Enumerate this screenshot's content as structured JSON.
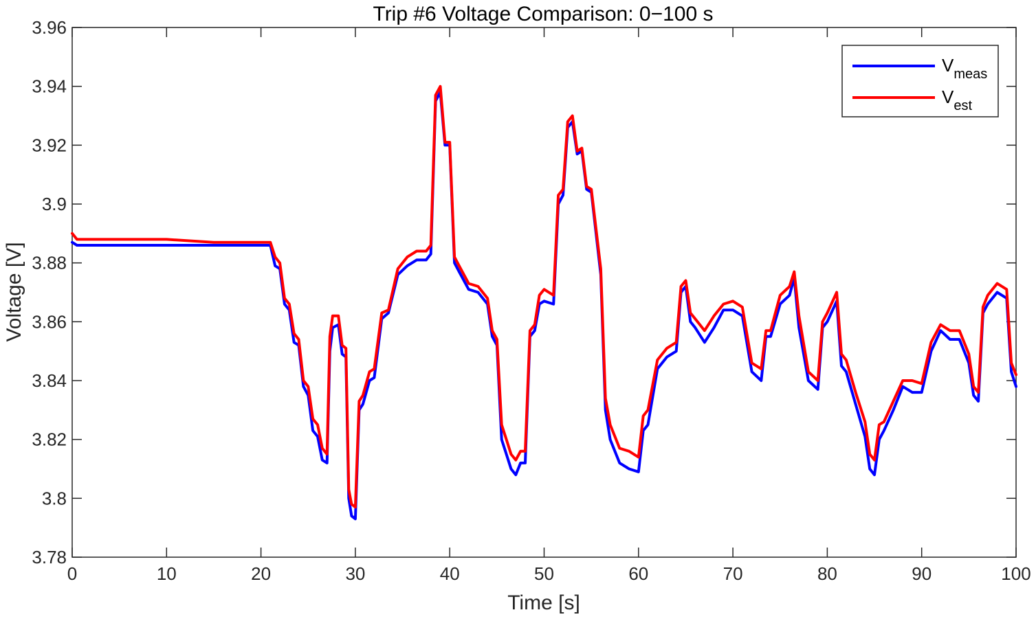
{
  "chart_data": {
    "type": "line",
    "title": "Trip #6 Voltage Comparison: 0−100 s",
    "xlabel": "Time [s]",
    "ylabel": "Voltage [V]",
    "xlim": [
      0,
      100
    ],
    "ylim": [
      3.78,
      3.96
    ],
    "xticks": [
      0,
      10,
      20,
      30,
      40,
      50,
      60,
      70,
      80,
      90,
      100
    ],
    "xtick_labels": [
      "0",
      "10",
      "20",
      "30",
      "40",
      "50",
      "60",
      "70",
      "80",
      "90",
      "100"
    ],
    "yticks": [
      3.78,
      3.8,
      3.82,
      3.84,
      3.86,
      3.88,
      3.9,
      3.92,
      3.94,
      3.96
    ],
    "ytick_labels": [
      "3.78",
      "3.8",
      "3.82",
      "3.84",
      "3.86",
      "3.88",
      "3.9",
      "3.92",
      "3.94",
      "3.96"
    ],
    "grid": false,
    "legend_position": "top-right",
    "series": [
      {
        "name": "V",
        "name_subscript": "meas",
        "color": "#0000ff",
        "x": [
          0,
          0.5,
          5,
          10,
          15,
          20,
          21,
          21.5,
          22,
          22.5,
          23,
          23.5,
          24,
          24.5,
          25,
          25.5,
          26,
          26.5,
          27,
          27.3,
          27.6,
          28.2,
          28.6,
          29,
          29.3,
          29.6,
          30,
          30.4,
          30.8,
          31.5,
          32,
          32.8,
          33.5,
          34.5,
          35.5,
          36.5,
          37.5,
          38,
          38.5,
          39,
          39.5,
          40,
          40.5,
          41,
          42,
          43,
          44,
          44.5,
          45,
          45.5,
          46,
          46.5,
          47,
          47.5,
          48,
          48.5,
          49,
          49.5,
          50,
          51,
          51.5,
          52,
          52.5,
          53,
          53.5,
          54,
          54.5,
          55,
          56,
          56.5,
          57,
          58,
          59,
          60,
          60.5,
          61,
          62,
          63,
          64,
          64.5,
          65,
          65.5,
          66,
          67,
          68,
          69,
          70,
          71,
          72,
          73,
          73.5,
          74,
          75,
          76,
          76.5,
          77,
          78,
          79,
          79.5,
          80,
          81,
          81.5,
          82,
          83,
          84,
          84.5,
          85,
          85.5,
          86,
          87,
          88,
          89,
          90,
          91,
          92,
          93,
          94,
          95,
          95.5,
          96,
          96.5,
          97,
          98,
          99,
          99.5,
          100
        ],
        "y": [
          3.887,
          3.886,
          3.886,
          3.886,
          3.886,
          3.886,
          3.886,
          3.879,
          3.878,
          3.866,
          3.864,
          3.853,
          3.852,
          3.838,
          3.835,
          3.823,
          3.821,
          3.813,
          3.812,
          3.85,
          3.858,
          3.859,
          3.849,
          3.848,
          3.8,
          3.794,
          3.793,
          3.83,
          3.832,
          3.84,
          3.841,
          3.861,
          3.863,
          3.876,
          3.879,
          3.881,
          3.881,
          3.883,
          3.935,
          3.938,
          3.92,
          3.92,
          3.88,
          3.877,
          3.871,
          3.87,
          3.866,
          3.855,
          3.852,
          3.82,
          3.815,
          3.81,
          3.808,
          3.812,
          3.812,
          3.855,
          3.857,
          3.866,
          3.867,
          3.866,
          3.9,
          3.903,
          3.926,
          3.928,
          3.917,
          3.918,
          3.905,
          3.904,
          3.876,
          3.83,
          3.82,
          3.812,
          3.81,
          3.809,
          3.823,
          3.825,
          3.844,
          3.848,
          3.85,
          3.87,
          3.872,
          3.86,
          3.858,
          3.853,
          3.858,
          3.864,
          3.864,
          3.862,
          3.843,
          3.84,
          3.855,
          3.855,
          3.866,
          3.869,
          3.875,
          3.858,
          3.84,
          3.837,
          3.858,
          3.86,
          3.867,
          3.845,
          3.843,
          3.832,
          3.821,
          3.81,
          3.808,
          3.82,
          3.823,
          3.83,
          3.838,
          3.836,
          3.836,
          3.85,
          3.857,
          3.854,
          3.854,
          3.846,
          3.835,
          3.833,
          3.863,
          3.866,
          3.87,
          3.868,
          3.843,
          3.838
        ]
      },
      {
        "name": "V",
        "name_subscript": "est",
        "color": "#ff0000",
        "x": [
          0,
          0.5,
          5,
          10,
          15,
          20,
          21,
          21.5,
          22,
          22.5,
          23,
          23.5,
          24,
          24.5,
          25,
          25.5,
          26,
          26.5,
          27,
          27.3,
          27.6,
          28.2,
          28.6,
          29,
          29.3,
          29.6,
          30,
          30.4,
          30.8,
          31.5,
          32,
          32.8,
          33.5,
          34.5,
          35.5,
          36.5,
          37.5,
          38,
          38.5,
          39,
          39.5,
          40,
          40.5,
          41,
          42,
          43,
          44,
          44.5,
          45,
          45.5,
          46,
          46.5,
          47,
          47.5,
          48,
          48.5,
          49,
          49.5,
          50,
          51,
          51.5,
          52,
          52.5,
          53,
          53.5,
          54,
          54.5,
          55,
          56,
          56.5,
          57,
          58,
          59,
          60,
          60.5,
          61,
          62,
          63,
          64,
          64.5,
          65,
          65.5,
          66,
          67,
          68,
          69,
          70,
          71,
          72,
          73,
          73.5,
          74,
          75,
          76,
          76.5,
          77,
          78,
          79,
          79.5,
          80,
          81,
          81.5,
          82,
          83,
          84,
          84.5,
          85,
          85.5,
          86,
          87,
          88,
          89,
          90,
          91,
          92,
          93,
          94,
          95,
          95.5,
          96,
          96.5,
          97,
          98,
          99,
          99.5,
          100
        ],
        "y": [
          3.89,
          3.888,
          3.888,
          3.888,
          3.887,
          3.887,
          3.887,
          3.882,
          3.88,
          3.868,
          3.866,
          3.856,
          3.854,
          3.84,
          3.838,
          3.827,
          3.825,
          3.817,
          3.815,
          3.855,
          3.862,
          3.862,
          3.852,
          3.851,
          3.803,
          3.798,
          3.797,
          3.833,
          3.835,
          3.843,
          3.844,
          3.863,
          3.864,
          3.878,
          3.882,
          3.884,
          3.884,
          3.886,
          3.937,
          3.94,
          3.921,
          3.921,
          3.882,
          3.879,
          3.873,
          3.872,
          3.868,
          3.857,
          3.854,
          3.825,
          3.82,
          3.815,
          3.813,
          3.816,
          3.816,
          3.857,
          3.859,
          3.869,
          3.871,
          3.869,
          3.903,
          3.905,
          3.928,
          3.93,
          3.918,
          3.919,
          3.906,
          3.905,
          3.878,
          3.834,
          3.825,
          3.817,
          3.816,
          3.814,
          3.828,
          3.83,
          3.847,
          3.851,
          3.853,
          3.872,
          3.874,
          3.863,
          3.861,
          3.857,
          3.862,
          3.866,
          3.867,
          3.865,
          3.846,
          3.844,
          3.857,
          3.857,
          3.869,
          3.872,
          3.877,
          3.862,
          3.843,
          3.84,
          3.86,
          3.863,
          3.87,
          3.849,
          3.847,
          3.836,
          3.826,
          3.815,
          3.813,
          3.825,
          3.826,
          3.833,
          3.84,
          3.84,
          3.839,
          3.853,
          3.859,
          3.857,
          3.857,
          3.849,
          3.838,
          3.836,
          3.865,
          3.869,
          3.873,
          3.871,
          3.846,
          3.842
        ]
      }
    ]
  }
}
